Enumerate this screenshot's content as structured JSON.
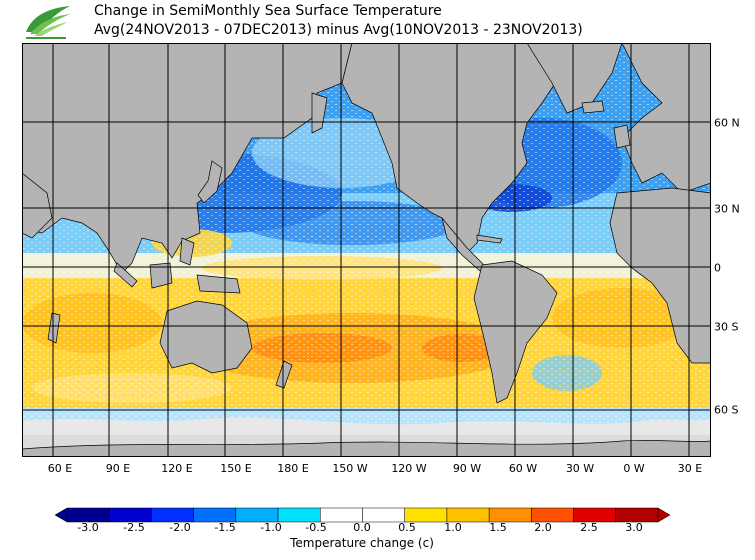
{
  "title_line1": "Change in SemiMonthly Sea Surface Temperature",
  "title_line2": "Avg(24NOV2013 - 07DEC2013) minus Avg(10NOV2013 - 23NOV2013)",
  "map": {
    "projection": "cylindrical",
    "lon_labels": [
      "60 E",
      "90 E",
      "120 E",
      "150 E",
      "180 E",
      "150 W",
      "120 W",
      "90 W",
      "60 W",
      "30 W",
      "0 W",
      "30 E"
    ],
    "lat_labels": [
      "60 N",
      "30 N",
      "0",
      "30 S",
      "60 S"
    ],
    "land_color": "#b4b4b4",
    "ice_color": "#dcdcdc",
    "ocean_pattern": "cooling (blue) across the northern oceans and mid-latitude North Pacific; warming (yellow/orange) across the tropics and Southern Hemisphere mid-latitudes, strongest in the South Pacific"
  },
  "colorbar": {
    "labels": [
      "-3.0",
      "-2.5",
      "-2.0",
      "-1.5",
      "-1.0",
      "-0.5",
      "0.0",
      "0.5",
      "1.0",
      "1.5",
      "2.0",
      "2.5",
      "3.0"
    ],
    "colors": [
      "#000090",
      "#0000d0",
      "#0030ff",
      "#0070ff",
      "#00b0ff",
      "#00e0ff",
      "#ffffff",
      "#ffe000",
      "#ffc000",
      "#ff9000",
      "#ff5000",
      "#e00000",
      "#b00000"
    ],
    "unit_label": "Temperature change  (c)"
  }
}
